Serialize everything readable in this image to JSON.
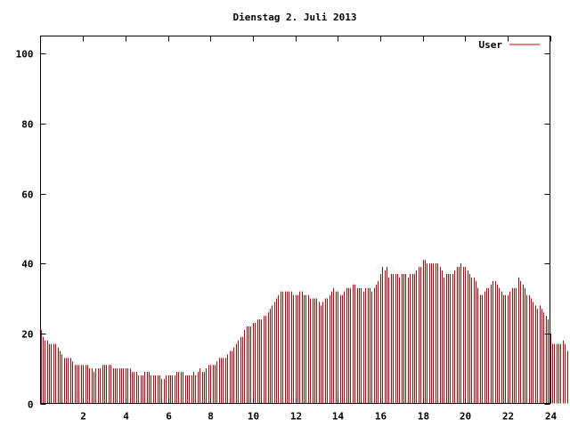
{
  "chart_data": {
    "type": "bar",
    "title": "Dienstag 2. Juli 2013",
    "xlabel": "",
    "ylabel": "",
    "xlim": [
      0,
      24
    ],
    "ylim": [
      0,
      105
    ],
    "xticks": [
      2,
      4,
      6,
      8,
      10,
      12,
      14,
      16,
      18,
      20,
      22,
      24
    ],
    "yticks": [
      0,
      20,
      40,
      60,
      80,
      100
    ],
    "grid": false,
    "legend_position": "top-right",
    "colors": {
      "series": "#cc0000",
      "axis": "#000000",
      "background": "#ffffff"
    },
    "series": [
      {
        "name": "User",
        "x_start": 0,
        "x_step": 0.1,
        "values": [
          21,
          19,
          18,
          18,
          17,
          17,
          17,
          17,
          16,
          15,
          14,
          13,
          13,
          13,
          13,
          12,
          11,
          11,
          11,
          11,
          11,
          11,
          11,
          10,
          10,
          9,
          10,
          10,
          10,
          11,
          11,
          11,
          11,
          11,
          10,
          10,
          10,
          10,
          10,
          10,
          10,
          10,
          10,
          9,
          9,
          9,
          8,
          8,
          8,
          9,
          9,
          9,
          8,
          8,
          8,
          8,
          8,
          7,
          7,
          8,
          8,
          8,
          8,
          8,
          9,
          9,
          9,
          9,
          8,
          8,
          8,
          8,
          9,
          8,
          9,
          10,
          9,
          9,
          10,
          11,
          11,
          11,
          11,
          12,
          13,
          13,
          13,
          13,
          14,
          15,
          15,
          16,
          17,
          18,
          19,
          19,
          21,
          22,
          22,
          22,
          23,
          23,
          24,
          24,
          24,
          25,
          25,
          26,
          27,
          28,
          29,
          30,
          31,
          32,
          32,
          32,
          32,
          32,
          32,
          31,
          31,
          31,
          32,
          32,
          31,
          31,
          31,
          30,
          30,
          30,
          30,
          29,
          28,
          29,
          30,
          30,
          31,
          32,
          33,
          32,
          32,
          31,
          31,
          32,
          33,
          33,
          33,
          34,
          34,
          33,
          33,
          33,
          32,
          33,
          33,
          33,
          32,
          33,
          34,
          35,
          37,
          39,
          38,
          39,
          36,
          37,
          37,
          37,
          37,
          36,
          37,
          37,
          37,
          36,
          37,
          37,
          37,
          38,
          39,
          39,
          41,
          41,
          40,
          40,
          40,
          40,
          40,
          40,
          39,
          38,
          36,
          37,
          37,
          37,
          37,
          38,
          39,
          39,
          40,
          39,
          39,
          38,
          37,
          36,
          36,
          35,
          33,
          31,
          31,
          32,
          33,
          33,
          34,
          35,
          35,
          34,
          33,
          32,
          31,
          31,
          31,
          32,
          33,
          33,
          33,
          36,
          35,
          34,
          33,
          31,
          31,
          30,
          29,
          28,
          27,
          28,
          27,
          26,
          25,
          24,
          20,
          17,
          17,
          17,
          17,
          17,
          18,
          17,
          15
        ]
      }
    ]
  }
}
